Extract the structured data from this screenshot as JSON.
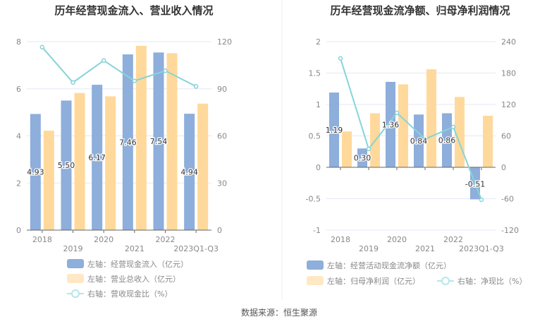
{
  "source": "数据来源：恒生聚源",
  "colors": {
    "blue": "#8eaedb",
    "orange": "#ffd99b",
    "line": "#86d4d8",
    "grid": "#e3e8f4"
  },
  "chart_data": [
    {
      "type": "bar",
      "title": "历年经营现金流入、营业收入情况",
      "categories": [
        "2018",
        "2019",
        "2020",
        "2021",
        "2022",
        "2023Q1-Q3"
      ],
      "left_axis": {
        "min": 0,
        "max": 8,
        "ticks": [
          "0",
          "2",
          "4",
          "6",
          "8"
        ]
      },
      "right_axis": {
        "min": 0,
        "max": 120,
        "ticks": [
          "0",
          "30",
          "60",
          "90",
          "120"
        ]
      },
      "series": [
        {
          "name": "左轴：经营现金流入（亿元）",
          "type": "bar",
          "axis": "left",
          "values": [
            4.93,
            5.5,
            6.17,
            7.46,
            7.54,
            4.94
          ],
          "labels": [
            "4.93",
            "5.50",
            "6.17",
            "7.46",
            "7.54",
            "4.94"
          ]
        },
        {
          "name": "左轴：营业总收入（亿元）",
          "type": "bar",
          "axis": "left",
          "values": [
            4.22,
            5.82,
            5.68,
            7.82,
            7.51,
            5.37
          ]
        },
        {
          "name": "右轴：营收现金比（%）",
          "type": "line",
          "axis": "right",
          "values": [
            116.5,
            94,
            108,
            95,
            101.5,
            91.5
          ]
        }
      ],
      "legend": "bottom"
    },
    {
      "type": "bar",
      "title": "历年经营现金流净额、归母净利润情况",
      "categories": [
        "2018",
        "2019",
        "2020",
        "2021",
        "2022",
        "2023Q1-Q3"
      ],
      "left_axis": {
        "min": -1,
        "max": 2,
        "ticks": [
          "-1",
          "-0.5",
          "0",
          "0.5",
          "1",
          "1.5",
          "2"
        ]
      },
      "right_axis": {
        "min": -120,
        "max": 240,
        "ticks": [
          "-120",
          "-60",
          "0",
          "60",
          "120",
          "180",
          "240"
        ]
      },
      "series": [
        {
          "name": "左轴：经营活动现金流净额（亿元）",
          "type": "bar",
          "axis": "left",
          "values": [
            1.19,
            0.3,
            1.36,
            0.84,
            0.86,
            -0.51
          ],
          "labels": [
            "1.19",
            "0.30",
            "1.36",
            "0.84",
            "0.86",
            "-0.51"
          ]
        },
        {
          "name": "左轴：归母净利润（亿元）",
          "type": "bar",
          "axis": "left",
          "values": [
            0.57,
            0.86,
            1.32,
            1.56,
            1.12,
            0.82
          ]
        },
        {
          "name": "右轴：净现比（%）",
          "type": "line",
          "axis": "right",
          "values": [
            208,
            35,
            104,
            54,
            77,
            -62
          ]
        }
      ],
      "legend": "bottom"
    }
  ]
}
